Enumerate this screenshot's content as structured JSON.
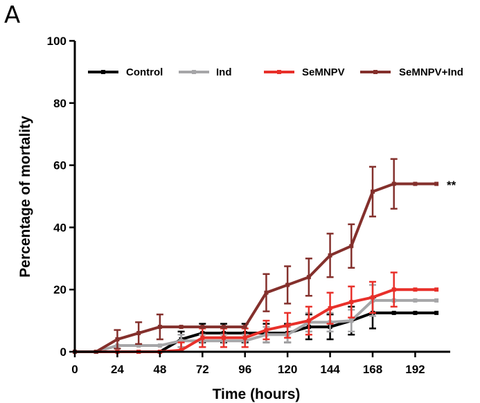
{
  "panel_label": "A",
  "chart_data": {
    "type": "line",
    "title": "",
    "xlabel": "Time (hours)",
    "ylabel": "Percentage of mortality",
    "xlim": [
      0,
      210
    ],
    "ylim": [
      0,
      100
    ],
    "xticks": [
      0,
      24,
      48,
      72,
      96,
      120,
      144,
      168,
      192
    ],
    "yticks": [
      0,
      20,
      40,
      60,
      80,
      100
    ],
    "legend_position": "top",
    "annotations": [
      {
        "text": "**",
        "series": "SeMNPV+Ind"
      }
    ],
    "series": [
      {
        "name": "Control",
        "color": "#000000",
        "x": [
          0,
          12,
          24,
          36,
          48,
          60,
          72,
          84,
          96,
          108,
          120,
          132,
          144,
          156,
          168,
          180,
          192,
          204
        ],
        "y": [
          0,
          0,
          0,
          0,
          0,
          4,
          6,
          6,
          6,
          6,
          6,
          8,
          8,
          10,
          12.5,
          12.5,
          12.5,
          12.5
        ],
        "err": [
          0,
          0,
          0,
          0,
          0,
          2.5,
          3,
          3,
          3,
          3,
          3,
          4,
          4,
          4.5,
          5,
          0,
          0,
          0
        ]
      },
      {
        "name": "Ind",
        "color": "#a6a6a8",
        "x": [
          0,
          12,
          24,
          36,
          48,
          60,
          72,
          84,
          96,
          108,
          120,
          132,
          144,
          156,
          168,
          180,
          192,
          204
        ],
        "y": [
          0,
          0,
          2,
          2,
          2,
          3.5,
          3.5,
          3.5,
          3.5,
          5.5,
          5.5,
          9.5,
          9.5,
          10,
          16.5,
          16.5,
          16.5,
          16.5
        ],
        "err": [
          0,
          0,
          0,
          0,
          0,
          2,
          2,
          2,
          2,
          2.5,
          2.5,
          3,
          3,
          3.5,
          5,
          0,
          0,
          0
        ]
      },
      {
        "name": "SeMNPV",
        "color": "#e8302a",
        "x": [
          0,
          12,
          24,
          36,
          48,
          60,
          72,
          84,
          96,
          108,
          120,
          132,
          144,
          156,
          168,
          180,
          192,
          204
        ],
        "y": [
          0,
          0,
          0,
          0,
          0,
          0.5,
          4.5,
          4.5,
          4.5,
          7,
          8.5,
          10,
          14,
          16,
          17.5,
          20,
          20,
          20
        ],
        "err": [
          0,
          0,
          0,
          0,
          0,
          2.5,
          3,
          3,
          3,
          3,
          4,
          4.5,
          5,
          5,
          5,
          5.5,
          0,
          0
        ]
      },
      {
        "name": "SeMNPV+Ind",
        "color": "#84302c",
        "x": [
          0,
          12,
          24,
          36,
          48,
          60,
          72,
          84,
          96,
          108,
          120,
          132,
          144,
          156,
          168,
          180,
          192,
          204
        ],
        "y": [
          0,
          0,
          4,
          6,
          8,
          8,
          8,
          8,
          8,
          19,
          21.5,
          24,
          31,
          34,
          51.5,
          54,
          54,
          54
        ],
        "err": [
          0,
          0,
          3,
          3.5,
          4,
          0,
          0,
          0,
          0,
          6,
          6,
          6,
          7,
          7,
          8,
          8,
          0,
          0
        ]
      }
    ]
  }
}
